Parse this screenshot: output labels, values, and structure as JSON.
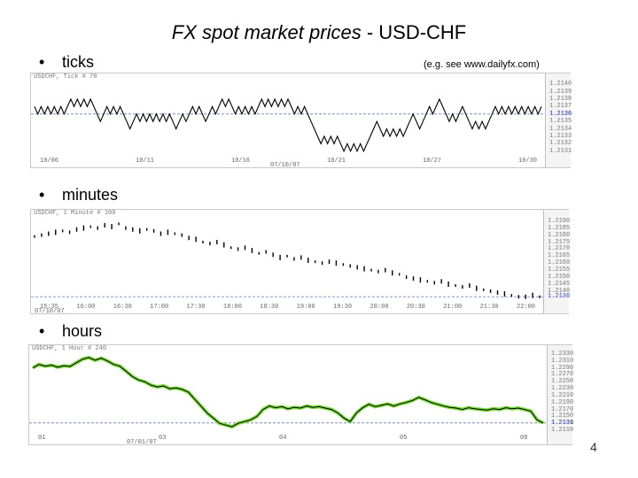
{
  "title_italic": "FX spot market prices",
  "title_rest": " - USD-CHF",
  "note": "(e.g. see  www.dailyfx.com)",
  "bullets": {
    "ticks": "ticks",
    "minutes": "minutes",
    "hours": "hours",
    "dot": "•"
  },
  "page_number": "4",
  "colors": {
    "line": "#000000",
    "hours_line": "#000000",
    "hours_glow": "#7bdc3c",
    "dash": "#6a7bb0",
    "last_price": "#2c3fd0"
  },
  "chart_data": [
    {
      "type": "line",
      "name": "ticks",
      "header": "USDCHF, Tick # 70",
      "x_ticks": [
        "10/06",
        "10/11",
        "10/16",
        "10/21",
        "10/27",
        "10/30"
      ],
      "x_sublabel": "07/10/07",
      "y_ticks": [
        "1.2140",
        "1.2139",
        "1.2138",
        "1.2137",
        "1.2136",
        "1.2135",
        "1.2134",
        "1.2133",
        "1.2132",
        "1.2131"
      ],
      "last_price": "1.2136",
      "values": [
        1.2137,
        1.2136,
        1.2137,
        1.2136,
        1.2137,
        1.2136,
        1.2137,
        1.2136,
        1.2137,
        1.2136,
        1.2137,
        1.2138,
        1.2137,
        1.2138,
        1.2137,
        1.2138,
        1.2137,
        1.2138,
        1.2137,
        1.2136,
        1.2135,
        1.2136,
        1.2137,
        1.2136,
        1.2137,
        1.2136,
        1.2137,
        1.2136,
        1.2135,
        1.2134,
        1.2135,
        1.2136,
        1.2135,
        1.2136,
        1.2135,
        1.2136,
        1.2135,
        1.2136,
        1.2135,
        1.2136,
        1.2135,
        1.2136,
        1.2135,
        1.2134,
        1.2135,
        1.2136,
        1.2135,
        1.2136,
        1.2137,
        1.2136,
        1.2137,
        1.2136,
        1.2135,
        1.2136,
        1.2137,
        1.2136,
        1.2137,
        1.2138,
        1.2137,
        1.2138,
        1.2137,
        1.2136,
        1.2137,
        1.2136,
        1.2137,
        1.2136,
        1.2137,
        1.2136,
        1.2137,
        1.2138,
        1.2137,
        1.2138,
        1.2137,
        1.2138,
        1.2137,
        1.2138,
        1.2137,
        1.2138,
        1.2137,
        1.2136,
        1.2137,
        1.2136,
        1.2137,
        1.2136,
        1.2135,
        1.2134,
        1.2133,
        1.2132,
        1.2133,
        1.2132,
        1.2133,
        1.2132,
        1.2133,
        1.2132,
        1.2131,
        1.2132,
        1.2131,
        1.2132,
        1.2131,
        1.2132,
        1.2131,
        1.2132,
        1.2133,
        1.2134,
        1.2135,
        1.2134,
        1.2133,
        1.2134,
        1.2133,
        1.2134,
        1.2133,
        1.2134,
        1.2133,
        1.2134,
        1.2135,
        1.2136,
        1.2135,
        1.2134,
        1.2135,
        1.2136,
        1.2137,
        1.2136,
        1.2137,
        1.2138,
        1.2137,
        1.2136,
        1.2135,
        1.2136,
        1.2135,
        1.2136,
        1.2137,
        1.2136,
        1.2135,
        1.2134,
        1.2135,
        1.2134,
        1.2135,
        1.2134,
        1.2135,
        1.2136,
        1.2137,
        1.2136,
        1.2137,
        1.2136,
        1.2137,
        1.2136,
        1.2137,
        1.2136,
        1.2137,
        1.2136,
        1.2137,
        1.2136,
        1.2137,
        1.2136,
        1.2137
      ],
      "ylim": [
        1.21305,
        1.21405
      ]
    },
    {
      "type": "line",
      "name": "minutes",
      "header": "USDCHF, 1 Minute # 100",
      "x_ticks": [
        "15:35",
        "16:00",
        "16:30",
        "17:00",
        "17:30",
        "18:00",
        "18:30",
        "19:00",
        "19:30",
        "20:00",
        "20:30",
        "21:00",
        "21:30",
        "22:00"
      ],
      "x_sublabel": "07/10/07",
      "y_ticks": [
        "1.2190",
        "1.2185",
        "1.2180",
        "1.2175",
        "1.2170",
        "1.2165",
        "1.2160",
        "1.2155",
        "1.2150",
        "1.2145",
        "1.2140"
      ],
      "last_price": "1.2136",
      "values": [
        1.2179,
        1.218,
        1.2181,
        1.2182,
        1.2183,
        1.2182,
        1.2184,
        1.2185,
        1.2186,
        1.2185,
        1.2187,
        1.2186,
        1.2188,
        1.2185,
        1.2184,
        1.2183,
        1.2184,
        1.2183,
        1.2181,
        1.2182,
        1.2181,
        1.218,
        1.2178,
        1.2177,
        1.2175,
        1.2174,
        1.2175,
        1.2173,
        1.2171,
        1.217,
        1.2171,
        1.2169,
        1.2167,
        1.2168,
        1.2166,
        1.2164,
        1.2165,
        1.2163,
        1.2164,
        1.2162,
        1.2161,
        1.216,
        1.2161,
        1.216,
        1.2159,
        1.2158,
        1.2157,
        1.2156,
        1.2155,
        1.2154,
        1.2155,
        1.2153,
        1.2152,
        1.215,
        1.2149,
        1.2148,
        1.2147,
        1.2146,
        1.2147,
        1.2145,
        1.2144,
        1.2143,
        1.2144,
        1.2142,
        1.2141,
        1.214,
        1.2139,
        1.2138,
        1.2137,
        1.2136,
        1.2136,
        1.2137,
        1.2136
      ],
      "ylim": [
        1.2133,
        1.2193
      ]
    },
    {
      "type": "line",
      "name": "hours",
      "header": "USDCHF, 1 Hour # 240",
      "x_ticks": [
        "01",
        "03",
        "04",
        "05",
        "08"
      ],
      "x_sublabel": "07/01/07",
      "y_ticks": [
        "1.2330",
        "1.2310",
        "1.2290",
        "1.2270",
        "1.2250",
        "1.2230",
        "1.2210",
        "1.2190",
        "1.2170",
        "1.2150",
        "1.2130",
        "1.2110"
      ],
      "last_price": "1.2131",
      "values": [
        1.229,
        1.23,
        1.2295,
        1.2298,
        1.2292,
        1.2296,
        1.2294,
        1.2305,
        1.2315,
        1.232,
        1.2312,
        1.2318,
        1.231,
        1.23,
        1.2295,
        1.228,
        1.2265,
        1.2255,
        1.225,
        1.224,
        1.2235,
        1.2238,
        1.223,
        1.2232,
        1.2228,
        1.222,
        1.22,
        1.218,
        1.216,
        1.2145,
        1.213,
        1.2125,
        1.212,
        1.213,
        1.2135,
        1.214,
        1.215,
        1.217,
        1.218,
        1.2175,
        1.2178,
        1.2172,
        1.2176,
        1.2174,
        1.218,
        1.2176,
        1.2178,
        1.2174,
        1.217,
        1.216,
        1.2145,
        1.2135,
        1.216,
        1.2175,
        1.2185,
        1.2178,
        1.2182,
        1.2186,
        1.218,
        1.2186,
        1.219,
        1.2196,
        1.2205,
        1.2198,
        1.219,
        1.2185,
        1.218,
        1.2176,
        1.2174,
        1.217,
        1.2175,
        1.2172,
        1.217,
        1.2168,
        1.2172,
        1.217,
        1.2175,
        1.2172,
        1.2174,
        1.217,
        1.2165,
        1.214,
        1.2131
      ],
      "ylim": [
        1.2105,
        1.2335
      ]
    }
  ]
}
